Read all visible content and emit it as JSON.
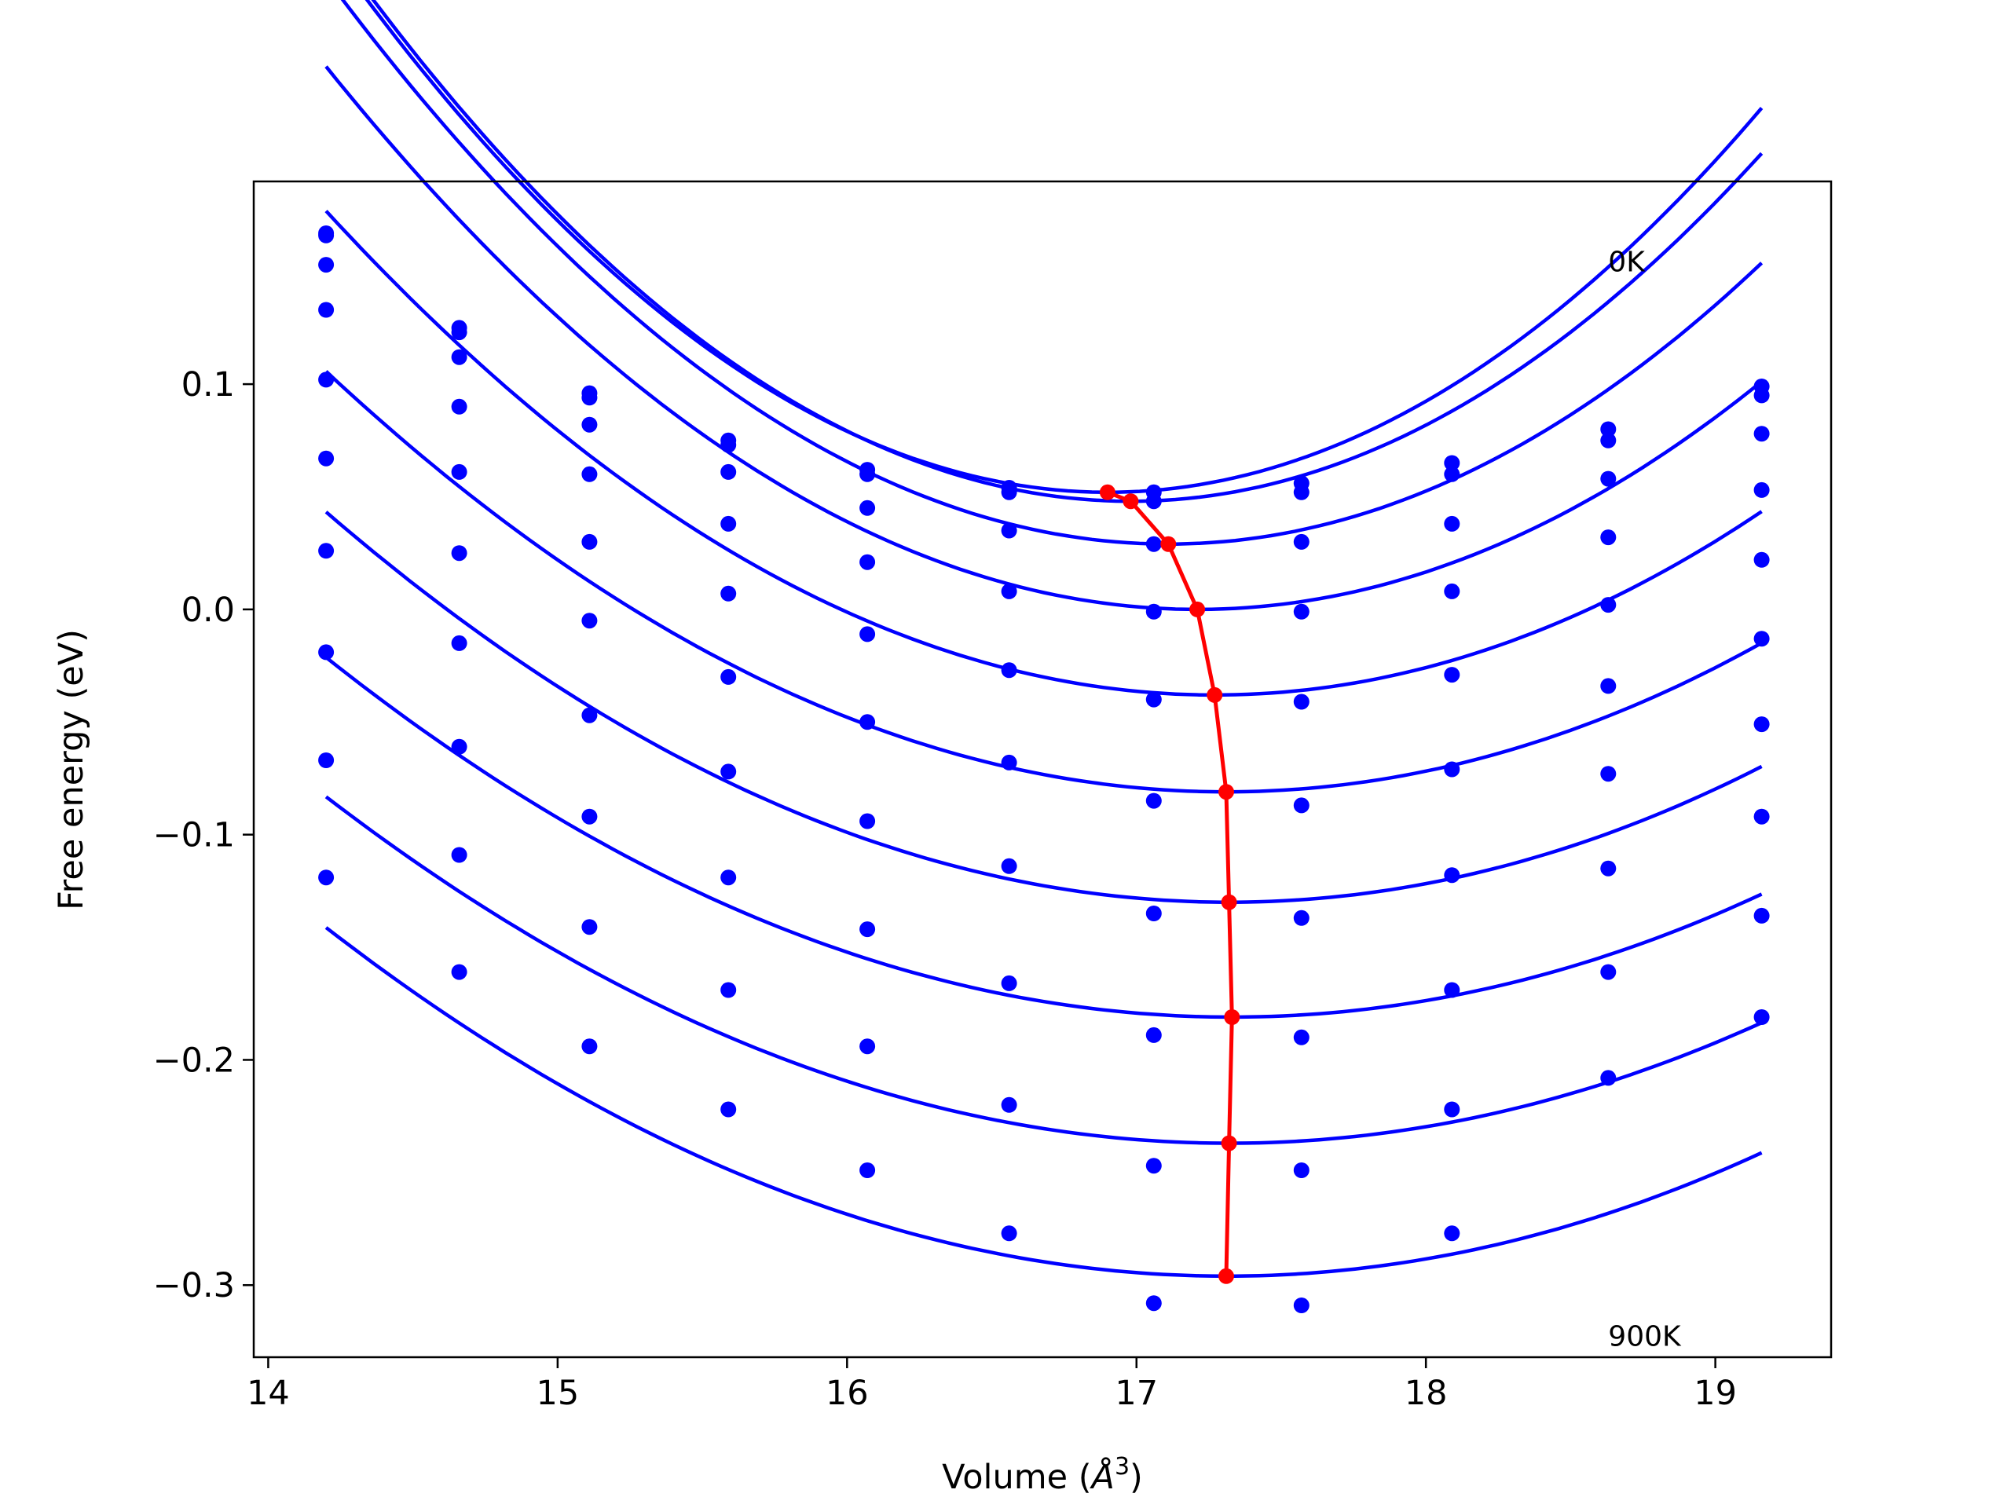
{
  "chart_data": {
    "type": "scatter",
    "title": "",
    "xlabel": "Volume (",
    "xlabel_unit": "Å",
    "xlabel_exp": "3",
    "xlabel_close": ")",
    "ylabel": "Free energy (eV)",
    "xlim": [
      13.95,
      19.4
    ],
    "ylim": [
      -0.332,
      0.19
    ],
    "xticks": [
      14,
      15,
      16,
      17,
      18,
      19
    ],
    "xtick_labels": [
      "14",
      "15",
      "16",
      "17",
      "18",
      "19"
    ],
    "yticks": [
      0.1,
      0.0,
      -0.1,
      -0.2,
      -0.3
    ],
    "ytick_labels": [
      "0.1",
      "0.0",
      "−0.1",
      "−0.2",
      "−0.3"
    ],
    "annotations": [
      {
        "text": "0K",
        "x": 18.63,
        "y": 0.15
      },
      {
        "text": "900K",
        "x": 18.63,
        "y": -0.327
      }
    ],
    "grid": false,
    "colors": {
      "points": "#0000ff",
      "fit": "#0000ff",
      "minimum_path": "#ff0000"
    },
    "x": [
      14.2,
      14.66,
      15.11,
      15.59,
      16.07,
      16.56,
      17.06,
      17.57,
      18.09,
      18.63,
      19.16
    ],
    "series": [
      {
        "points": [
          0.167,
          0.125,
          0.096,
          0.075,
          0.062,
          0.054,
          0.052,
          0.056,
          0.065,
          0.08,
          0.099
        ],
        "fit": {
          "a": 0.0334,
          "v0": 16.9,
          "e0": 0.052
        }
      },
      {
        "points": [
          0.166,
          0.123,
          0.094,
          0.073,
          0.06,
          0.052,
          0.048,
          0.052,
          0.06,
          0.075,
          0.095
        ],
        "fit": {
          "a": 0.0325,
          "v0": 16.98,
          "e0": 0.048
        }
      },
      {
        "points": [
          0.153,
          0.112,
          0.082,
          0.061,
          0.045,
          0.035,
          0.029,
          0.03,
          0.038,
          0.058,
          0.078
        ],
        "fit": {
          "a": 0.0297,
          "v0": 17.11,
          "e0": 0.029
        }
      },
      {
        "points": [
          0.133,
          0.09,
          0.06,
          0.038,
          0.021,
          0.008,
          -0.001,
          -0.001,
          0.008,
          0.032,
          0.053
        ],
        "fit": {
          "a": 0.0266,
          "v0": 17.21,
          "e0": 0.0
        }
      },
      {
        "points": [
          0.102,
          0.061,
          0.03,
          0.007,
          -0.011,
          -0.027,
          -0.04,
          -0.041,
          -0.029,
          0.002,
          0.022
        ],
        "fit": {
          "a": 0.0228,
          "v0": 17.27,
          "e0": -0.038
        }
      },
      {
        "points": [
          0.067,
          0.025,
          -0.005,
          -0.03,
          -0.05,
          -0.068,
          -0.085,
          -0.087,
          -0.071,
          -0.034,
          -0.013
        ],
        "fit": {
          "a": 0.0193,
          "v0": 17.31,
          "e0": -0.081
        }
      },
      {
        "points": [
          0.026,
          -0.015,
          -0.047,
          -0.072,
          -0.094,
          -0.114,
          -0.135,
          -0.137,
          -0.118,
          -0.073,
          -0.051
        ],
        "fit": {
          "a": 0.0178,
          "v0": 17.32,
          "e0": -0.13
        }
      },
      {
        "points": [
          -0.019,
          -0.061,
          -0.092,
          -0.119,
          -0.142,
          -0.166,
          -0.189,
          -0.19,
          -0.169,
          -0.115,
          -0.092
        ],
        "fit": {
          "a": 0.0163,
          "v0": 17.33,
          "e0": -0.181
        }
      },
      {
        "points": [
          -0.067,
          -0.109,
          -0.141,
          -0.169,
          -0.194,
          -0.22,
          -0.247,
          -0.249,
          -0.222,
          -0.161,
          -0.136
        ],
        "fit": {
          "a": 0.0158,
          "v0": 17.32,
          "e0": -0.237
        }
      },
      {
        "points": [
          -0.119,
          -0.161,
          -0.194,
          -0.222,
          -0.249,
          -0.277,
          -0.308,
          -0.309,
          -0.277,
          -0.208,
          -0.181
        ],
        "fit": {
          "a": 0.016,
          "v0": 17.31,
          "e0": -0.296
        }
      }
    ],
    "minimum_path": {
      "x": [
        16.9,
        16.98,
        17.11,
        17.21,
        17.27,
        17.31,
        17.32,
        17.33,
        17.32,
        17.31
      ],
      "y": [
        0.052,
        0.048,
        0.029,
        0.0,
        -0.038,
        -0.081,
        -0.13,
        -0.181,
        -0.237,
        -0.296
      ]
    }
  }
}
